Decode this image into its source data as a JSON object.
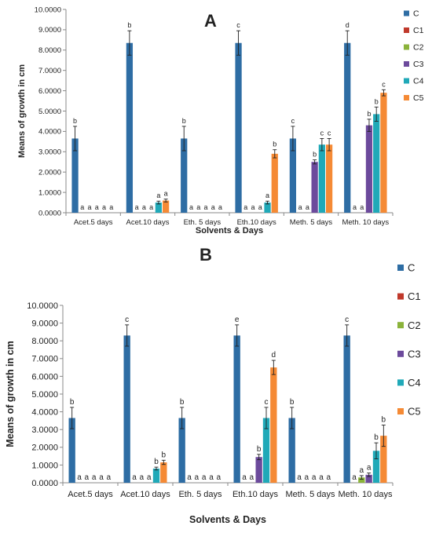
{
  "chart_data": [
    {
      "type": "bar",
      "title": "A",
      "xlabel": "Solvents & Days",
      "ylabel": "Means of growth in cm",
      "ylim": [
        0,
        10
      ],
      "yticks": [
        "0.0000",
        "1.0000",
        "2.0000",
        "3.0000",
        "4.0000",
        "5.0000",
        "6.0000",
        "7.0000",
        "8.0000",
        "9.0000",
        "10.0000"
      ],
      "categories": [
        "Acet.5 days",
        "Acet.10 days",
        "Eth. 5 days",
        "Eth.10 days",
        "Meth. 5 days",
        "Meth. 10 days"
      ],
      "legend_position": "right",
      "grid": false,
      "series": [
        {
          "name": "C",
          "color": "#2e6da4",
          "values": [
            3.65,
            8.35,
            3.65,
            8.35,
            3.65,
            8.35
          ],
          "errors": [
            0.6,
            0.6,
            0.6,
            0.6,
            0.6,
            0.6
          ],
          "labels": [
            "b",
            "b",
            "b",
            "c",
            "c",
            "d"
          ]
        },
        {
          "name": "C1",
          "color": "#c0392b",
          "values": [
            0,
            0,
            0,
            0,
            0,
            0
          ],
          "errors": [
            0,
            0,
            0,
            0,
            0,
            0
          ],
          "labels": [
            "a",
            "a",
            "a",
            "a",
            "a",
            "a"
          ]
        },
        {
          "name": "C2",
          "color": "#8bb33b",
          "values": [
            0,
            0,
            0,
            0,
            0,
            0
          ],
          "errors": [
            0,
            0,
            0,
            0,
            0,
            0
          ],
          "labels": [
            "a",
            "a",
            "a",
            "a",
            "a",
            "a"
          ]
        },
        {
          "name": "C3",
          "color": "#6c4a9c",
          "values": [
            0,
            0,
            0,
            0,
            2.5,
            4.3
          ],
          "errors": [
            0,
            0,
            0,
            0,
            0.1,
            0.3
          ],
          "labels": [
            "a",
            "a",
            "a",
            "a",
            "b",
            "b"
          ]
        },
        {
          "name": "C4",
          "color": "#20a9b8",
          "values": [
            0,
            0.5,
            0,
            0.5,
            3.35,
            4.85
          ],
          "errors": [
            0,
            0.07,
            0,
            0.07,
            0.3,
            0.35
          ],
          "labels": [
            "a",
            "a",
            "a",
            "a",
            "c",
            "b"
          ]
        },
        {
          "name": "C5",
          "color": "#f58a35",
          "values": [
            0,
            0.6,
            0,
            2.9,
            3.35,
            5.9
          ],
          "errors": [
            0,
            0.07,
            0,
            0.2,
            0.3,
            0.15
          ],
          "labels": [
            "a",
            "a",
            "a",
            "b",
            "c",
            "c"
          ]
        }
      ]
    },
    {
      "type": "bar",
      "title": "B",
      "xlabel": "Solvents & Days",
      "ylabel": "Means of growth in cm",
      "ylim": [
        0,
        10
      ],
      "yticks": [
        "0.0000",
        "1.0000",
        "2.0000",
        "3.0000",
        "4.0000",
        "5.0000",
        "6.0000",
        "7.0000",
        "8.0000",
        "9.0000",
        "10.0000"
      ],
      "categories": [
        "Acet.5 days",
        "Acet.10 days",
        "Eth. 5 days",
        "Eth.10 days",
        "Meth. 5 days",
        "Meth. 10 days"
      ],
      "legend_position": "right",
      "grid": false,
      "series": [
        {
          "name": "C",
          "color": "#2e6da4",
          "values": [
            3.65,
            8.3,
            3.65,
            8.3,
            3.65,
            8.3
          ],
          "errors": [
            0.6,
            0.6,
            0.6,
            0.6,
            0.6,
            0.6
          ],
          "labels": [
            "b",
            "c",
            "b",
            "e",
            "b",
            "c"
          ]
        },
        {
          "name": "C1",
          "color": "#c0392b",
          "values": [
            0,
            0,
            0,
            0,
            0,
            0
          ],
          "errors": [
            0,
            0,
            0,
            0,
            0,
            0
          ],
          "labels": [
            "a",
            "a",
            "a",
            "a",
            "a",
            "a"
          ]
        },
        {
          "name": "C2",
          "color": "#8bb33b",
          "values": [
            0,
            0,
            0,
            0,
            0,
            0.3
          ],
          "errors": [
            0,
            0,
            0,
            0,
            0,
            0.1
          ],
          "labels": [
            "a",
            "a",
            "a",
            "a",
            "a",
            "a"
          ]
        },
        {
          "name": "C3",
          "color": "#6c4a9c",
          "values": [
            0,
            0,
            0,
            1.45,
            0,
            0.45
          ],
          "errors": [
            0,
            0,
            0,
            0.15,
            0,
            0.1
          ],
          "labels": [
            "a",
            "a",
            "a",
            "b",
            "a",
            "a"
          ]
        },
        {
          "name": "C4",
          "color": "#20a9b8",
          "values": [
            0,
            0.8,
            0,
            3.65,
            0,
            1.8
          ],
          "errors": [
            0,
            0.08,
            0,
            0.6,
            0,
            0.45
          ],
          "labels": [
            "a",
            "b",
            "a",
            "c",
            "a",
            "b"
          ]
        },
        {
          "name": "C5",
          "color": "#f58a35",
          "values": [
            0,
            1.15,
            0,
            6.5,
            0,
            2.65
          ],
          "errors": [
            0,
            0.12,
            0,
            0.4,
            0,
            0.6
          ],
          "labels": [
            "a",
            "b",
            "a",
            "d",
            "a",
            "b"
          ]
        }
      ]
    }
  ]
}
